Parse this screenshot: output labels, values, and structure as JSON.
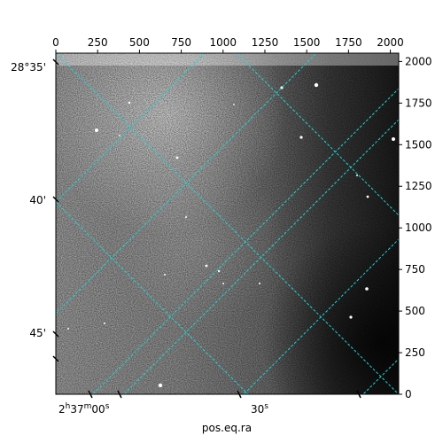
{
  "figure": {
    "xlabel": "pos.eq.ra",
    "colors": {
      "grid": "#22d3d3",
      "frame": "#000000",
      "background": "#ffffff"
    },
    "pixel_axis_top": {
      "ticks": [
        "0",
        "250",
        "500",
        "750",
        "1000",
        "1250",
        "1500",
        "1750",
        "2000"
      ],
      "range": [
        0,
        2050
      ]
    },
    "pixel_axis_right": {
      "ticks": [
        "0",
        "250",
        "500",
        "750",
        "1000",
        "1250",
        "1500",
        "1750",
        "2000"
      ],
      "range": [
        0,
        2050
      ]
    },
    "dec_axis_left": {
      "label_main": "28°35'",
      "label_40": "40'",
      "label_45": "45'"
    },
    "ra_axis_bottom": {
      "label_hour_h": "2",
      "label_h": "h",
      "label_37": "37",
      "label_m": "m",
      "label_00": "00",
      "label_s1": "s",
      "label_30": "30",
      "label_s2": "s"
    },
    "image": {
      "type": "grayscale astronomical exposure",
      "grid_style": "dashed"
    }
  }
}
